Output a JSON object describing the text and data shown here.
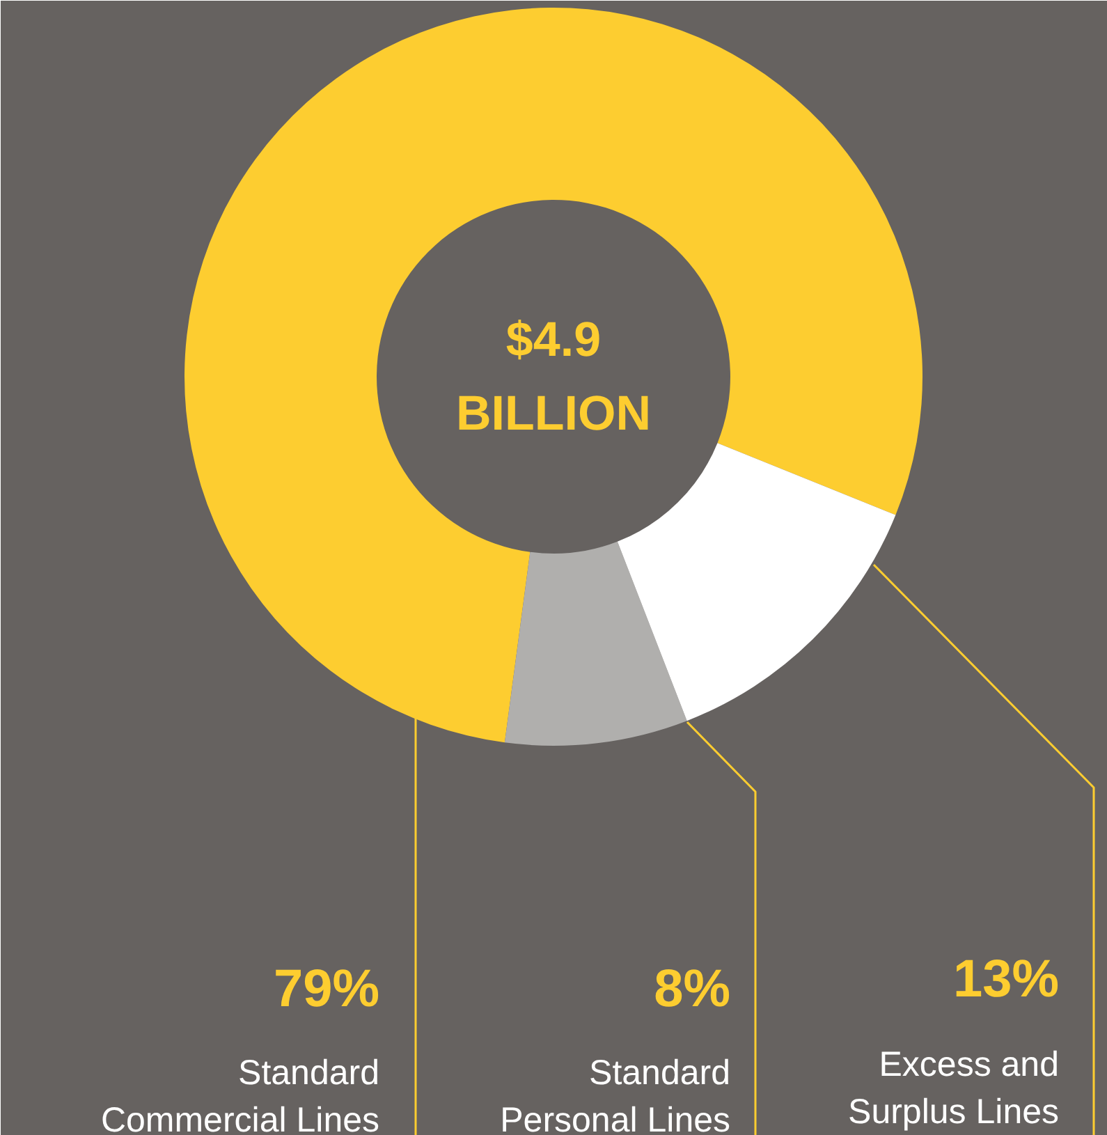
{
  "chart_data": {
    "type": "donut",
    "categories": [
      "Standard\nCommercial Lines",
      "Standard\nPersonal Lines",
      "Excess and\nSurplus Lines"
    ],
    "values": [
      79,
      8,
      13
    ],
    "colors": [
      "#fdcd30",
      "#b0afad",
      "#ffffff"
    ],
    "value_labels": [
      "79%",
      "8%",
      "13%"
    ],
    "annotations": [
      "$4.9\nBILLION"
    ]
  }
}
